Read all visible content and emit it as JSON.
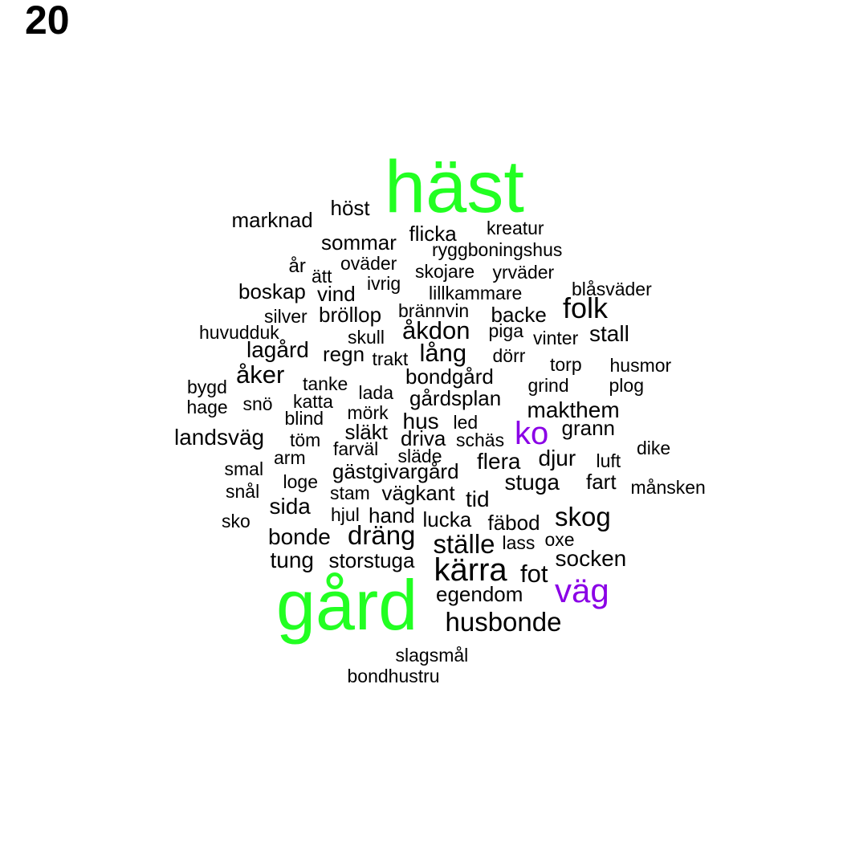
{
  "page_number": "20",
  "colors": {
    "highest": "#22ff22",
    "high": "#8a00e6",
    "normal": "#000000"
  },
  "words": [
    {
      "text": "häst",
      "weight": "highest"
    },
    {
      "text": "gård",
      "weight": "highest"
    },
    {
      "text": "ko",
      "weight": "high"
    },
    {
      "text": "väg",
      "weight": "high"
    },
    {
      "text": "marknad"
    },
    {
      "text": "höst"
    },
    {
      "text": "kreatur"
    },
    {
      "text": "flicka"
    },
    {
      "text": "sommar"
    },
    {
      "text": "ryggboningshus"
    },
    {
      "text": "år"
    },
    {
      "text": "ätt"
    },
    {
      "text": "oväder"
    },
    {
      "text": "skojare"
    },
    {
      "text": "yrväder"
    },
    {
      "text": "boskap"
    },
    {
      "text": "vind"
    },
    {
      "text": "ivrig"
    },
    {
      "text": "lillkammare"
    },
    {
      "text": "blåsväder"
    },
    {
      "text": "silver"
    },
    {
      "text": "bröllop"
    },
    {
      "text": "brännvin"
    },
    {
      "text": "backe"
    },
    {
      "text": "folk"
    },
    {
      "text": "huvudduk"
    },
    {
      "text": "skull"
    },
    {
      "text": "åkdon"
    },
    {
      "text": "piga"
    },
    {
      "text": "vinter"
    },
    {
      "text": "stall"
    },
    {
      "text": "lagård"
    },
    {
      "text": "regn"
    },
    {
      "text": "trakt"
    },
    {
      "text": "lång"
    },
    {
      "text": "dörr"
    },
    {
      "text": "torp"
    },
    {
      "text": "husmor"
    },
    {
      "text": "åker"
    },
    {
      "text": "bondgård"
    },
    {
      "text": "bygd"
    },
    {
      "text": "tanke"
    },
    {
      "text": "grind"
    },
    {
      "text": "plog"
    },
    {
      "text": "lada"
    },
    {
      "text": "snö"
    },
    {
      "text": "katta"
    },
    {
      "text": "gårdsplan"
    },
    {
      "text": "hage"
    },
    {
      "text": "mörk"
    },
    {
      "text": "makthem"
    },
    {
      "text": "blind"
    },
    {
      "text": "hus"
    },
    {
      "text": "led"
    },
    {
      "text": "landsväg"
    },
    {
      "text": "släkt"
    },
    {
      "text": "grann"
    },
    {
      "text": "töm"
    },
    {
      "text": "driva"
    },
    {
      "text": "schäs"
    },
    {
      "text": "farväl"
    },
    {
      "text": "dike"
    },
    {
      "text": "släde"
    },
    {
      "text": "arm"
    },
    {
      "text": "djur"
    },
    {
      "text": "flera"
    },
    {
      "text": "luft"
    },
    {
      "text": "smal"
    },
    {
      "text": "gästgivargård"
    },
    {
      "text": "loge"
    },
    {
      "text": "fart"
    },
    {
      "text": "stuga"
    },
    {
      "text": "månsken"
    },
    {
      "text": "snål"
    },
    {
      "text": "stam"
    },
    {
      "text": "vägkant"
    },
    {
      "text": "tid"
    },
    {
      "text": "sida"
    },
    {
      "text": "hjul"
    },
    {
      "text": "hand"
    },
    {
      "text": "sko"
    },
    {
      "text": "lucka"
    },
    {
      "text": "fäbod"
    },
    {
      "text": "skog"
    },
    {
      "text": "bonde"
    },
    {
      "text": "dräng"
    },
    {
      "text": "lass"
    },
    {
      "text": "oxe"
    },
    {
      "text": "ställe"
    },
    {
      "text": "tung"
    },
    {
      "text": "storstuga"
    },
    {
      "text": "socken"
    },
    {
      "text": "kärra"
    },
    {
      "text": "fot"
    },
    {
      "text": "egendom"
    },
    {
      "text": "husbonde"
    },
    {
      "text": "slagsmål"
    },
    {
      "text": "bondhustru"
    }
  ]
}
